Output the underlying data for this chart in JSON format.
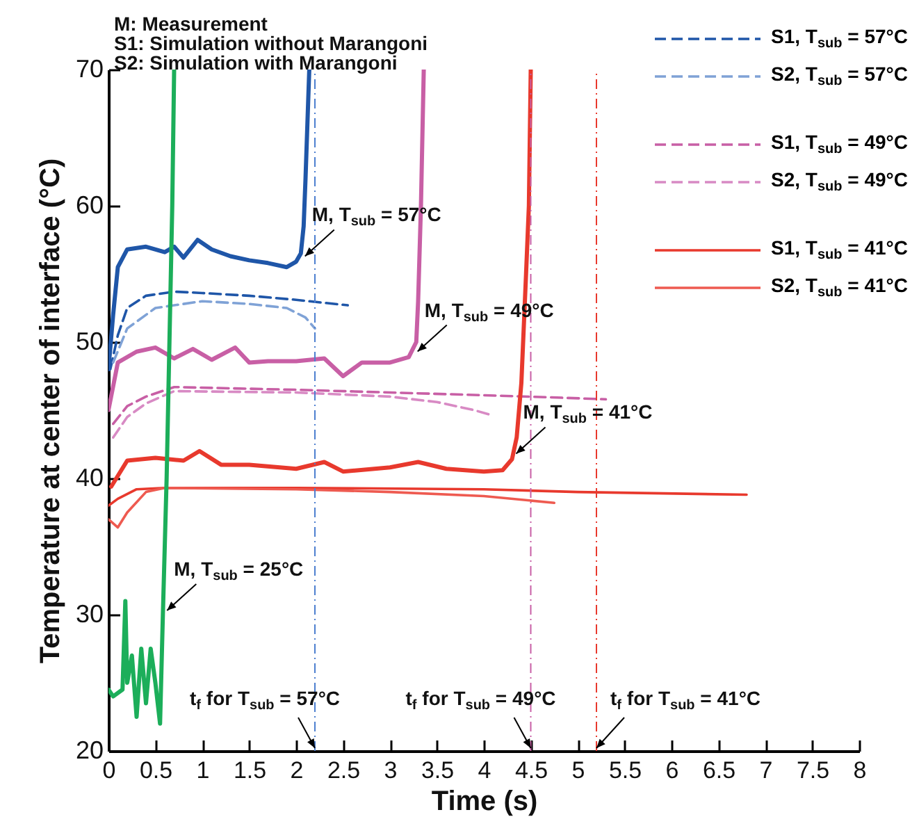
{
  "chart_data": {
    "type": "line",
    "xlabel": "Time (s)",
    "ylabel": "Temperature at center of interface (°C)",
    "xlim": [
      0,
      8
    ],
    "xticks": [
      0,
      0.5,
      1,
      1.5,
      2,
      2.5,
      3,
      3.5,
      4,
      4.5,
      5,
      5.5,
      6,
      6.5,
      7,
      7.5,
      8
    ],
    "ylim": [
      20,
      70
    ],
    "yticks": [
      20,
      30,
      40,
      50,
      60,
      70
    ],
    "legend": "top right",
    "series": [
      {
        "color": "#1f56a8",
        "line_style": "solid",
        "x": [
          0,
          0.05,
          0.1,
          0.2,
          0.4,
          0.6,
          0.7,
          0.8,
          0.95,
          1.1,
          1.3,
          1.5,
          1.7,
          1.9,
          2.0,
          2.05,
          2.08,
          2.1,
          2.12,
          2.14
        ],
        "values": [
          48,
          52,
          55.5,
          56.8,
          57,
          56.6,
          57,
          56.2,
          57.5,
          56.8,
          56.3,
          56,
          55.8,
          55.5,
          55.9,
          56.5,
          58.5,
          62,
          66,
          70
        ]
      },
      {
        "name": "S1, T$_{sub}$ = 57°C",
        "color": "#1f56a8",
        "line_style": "dashed",
        "x": [
          0.02,
          0.1,
          0.2,
          0.4,
          0.7,
          1,
          1.5,
          2,
          2.55
        ],
        "values": [
          48,
          50.5,
          52.5,
          53.4,
          53.7,
          53.6,
          53.4,
          53.1,
          52.7
        ]
      },
      {
        "name": "S2, T$_{sub}$ = 57°C",
        "color": "#7fa2d6",
        "line_style": "dashed",
        "x": [
          0.05,
          0.2,
          0.5,
          1,
          1.5,
          1.9,
          2.1,
          2.2
        ],
        "values": [
          48.5,
          51,
          52.5,
          53,
          52.8,
          52.5,
          51.8,
          51
        ]
      },
      {
        "color": "#c85fa5",
        "line_style": "solid",
        "x": [
          0,
          0.1,
          0.3,
          0.5,
          0.7,
          0.9,
          1.1,
          1.35,
          1.5,
          1.7,
          2,
          2.3,
          2.5,
          2.7,
          3,
          3.2,
          3.28,
          3.3,
          3.33,
          3.36
        ],
        "values": [
          45,
          48.5,
          49.3,
          49.6,
          48.8,
          49.5,
          48.7,
          49.6,
          48.5,
          48.6,
          48.6,
          48.8,
          47.5,
          48.5,
          48.5,
          48.9,
          50,
          53,
          60,
          70
        ]
      },
      {
        "name": "S1, T$_{sub}$ = 49°C",
        "color": "#c85fa5",
        "line_style": "dashed",
        "x": [
          0.05,
          0.2,
          0.4,
          0.7,
          2,
          3,
          4,
          4.9,
          5.3
        ],
        "values": [
          44,
          45.3,
          46,
          46.7,
          46.5,
          46.3,
          46.1,
          45.9,
          45.8
        ]
      },
      {
        "name": "S2, T$_{sub}$ = 49°C",
        "color": "#d88ac4",
        "line_style": "dashed",
        "x": [
          0.05,
          0.2,
          0.4,
          0.7,
          2,
          3,
          3.5,
          3.9,
          4.05
        ],
        "values": [
          43,
          44.5,
          45.5,
          46.4,
          46.3,
          46,
          45.6,
          45,
          44.7
        ]
      },
      {
        "color": "#e8392d",
        "line_style": "solid",
        "x": [
          0.03,
          0.2,
          0.5,
          0.8,
          0.97,
          1.2,
          1.5,
          2,
          2.3,
          2.5,
          3,
          3.3,
          3.6,
          4,
          4.2,
          4.3,
          4.35,
          4.4,
          4.45,
          4.48,
          4.5
        ],
        "values": [
          39.4,
          41.3,
          41.5,
          41.3,
          42,
          41,
          41,
          40.7,
          41.2,
          40.5,
          40.8,
          41.2,
          40.7,
          40.5,
          40.6,
          41.4,
          43,
          47,
          55,
          60,
          70
        ]
      },
      {
        "name": "S1, T$_{sub}$ = 41°C",
        "color": "#e8392d",
        "line_style": "solid",
        "x": [
          0,
          0.1,
          0.3,
          0.6,
          2,
          4,
          5,
          6.8
        ],
        "values": [
          38,
          38.5,
          39.2,
          39.3,
          39.3,
          39.2,
          39,
          38.8
        ]
      },
      {
        "name": "S2, T$_{sub}$ = 41°C",
        "color": "#ee5a50",
        "line_style": "solid",
        "x": [
          0,
          0.1,
          0.2,
          0.4,
          0.6,
          2,
          3,
          4,
          4.75
        ],
        "values": [
          37,
          36.4,
          37.5,
          39,
          39.3,
          39.2,
          39,
          38.7,
          38.2
        ]
      },
      {
        "color": "#1cae5a",
        "line_style": "solid",
        "x": [
          0,
          0.05,
          0.15,
          0.18,
          0.2,
          0.25,
          0.3,
          0.35,
          0.4,
          0.45,
          0.5,
          0.55,
          0.58,
          0.6,
          0.62,
          0.65,
          0.68,
          0.7
        ],
        "values": [
          24.5,
          24,
          24.5,
          31,
          25,
          27,
          22.5,
          27.5,
          23.5,
          27.5,
          25,
          22,
          30,
          35,
          40,
          50,
          60,
          70
        ]
      }
    ],
    "ref_lines": [
      {
        "axis": "x",
        "value": 2.2,
        "color": "#4d7fcf",
        "line_style": "dashed"
      },
      {
        "axis": "x",
        "value": 4.5,
        "color": "#c85fa5",
        "line_style": "dashed"
      },
      {
        "axis": "x",
        "value": 5.2,
        "color": "#e8392d",
        "line_style": "dashed"
      }
    ],
    "annotations": [
      "M: Measurement",
      "S1: Simulation without Marangoni",
      "S2: Simulation with Marangoni",
      {
        "text": "M, T$_{sub}$ = 57°C",
        "x": 2.05,
        "y": 56
      },
      {
        "text": "M, T$_{sub}$ = 49°C",
        "x": 3.25,
        "y": 49
      },
      {
        "text": "M, T$_{sub}$ = 41°C",
        "x": 4.3,
        "y": 41.5
      },
      {
        "text": "M, T$_{sub}$ = 25°C",
        "x": 0.58,
        "y": 30
      },
      {
        "text": "t$_{f}$ for T$_{sub}$ = 57°C",
        "x": 2.2,
        "y": 20
      },
      {
        "text": "t$_{f}$ for T$_{sub}$ = 49°C",
        "x": 4.5,
        "y": 20
      },
      {
        "text": "t$_{f}$ for T$_{sub}$ = 41°C",
        "x": 5.2,
        "y": 20
      }
    ]
  }
}
